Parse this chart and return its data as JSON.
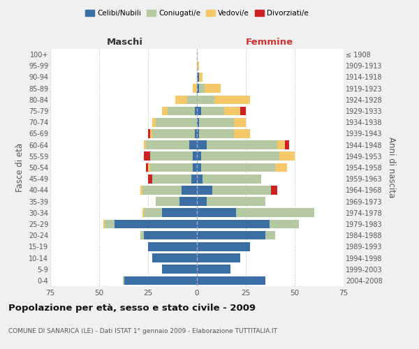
{
  "age_groups": [
    "0-4",
    "5-9",
    "10-14",
    "15-19",
    "20-24",
    "25-29",
    "30-34",
    "35-39",
    "40-44",
    "45-49",
    "50-54",
    "55-59",
    "60-64",
    "65-69",
    "70-74",
    "75-79",
    "80-84",
    "85-89",
    "90-94",
    "95-99",
    "100+"
  ],
  "birth_years": [
    "2004-2008",
    "1999-2003",
    "1994-1998",
    "1989-1993",
    "1984-1988",
    "1979-1983",
    "1974-1978",
    "1969-1973",
    "1964-1968",
    "1959-1963",
    "1954-1958",
    "1949-1953",
    "1944-1948",
    "1939-1943",
    "1934-1938",
    "1929-1933",
    "1924-1928",
    "1919-1923",
    "1914-1918",
    "1909-1913",
    "≤ 1908"
  ],
  "colors": {
    "celibi": "#3b6ea5",
    "coniugati": "#b5c9a0",
    "vedovi": "#f5c96a",
    "divorziati": "#cc2222"
  },
  "males": {
    "celibi": [
      37,
      18,
      23,
      25,
      27,
      42,
      18,
      9,
      8,
      3,
      2,
      2,
      4,
      1,
      0,
      1,
      0,
      0,
      0,
      0,
      0
    ],
    "coniugati": [
      1,
      0,
      0,
      0,
      2,
      5,
      9,
      12,
      20,
      20,
      22,
      22,
      22,
      22,
      21,
      14,
      5,
      0,
      0,
      0,
      0
    ],
    "vedovi": [
      0,
      0,
      0,
      0,
      0,
      1,
      1,
      0,
      1,
      0,
      1,
      0,
      1,
      1,
      2,
      3,
      6,
      2,
      0,
      0,
      0
    ],
    "divorziati": [
      0,
      0,
      0,
      0,
      0,
      0,
      0,
      0,
      0,
      2,
      1,
      3,
      0,
      1,
      0,
      0,
      0,
      0,
      0,
      0,
      0
    ]
  },
  "females": {
    "celibi": [
      35,
      17,
      22,
      27,
      35,
      37,
      20,
      5,
      8,
      3,
      2,
      2,
      5,
      1,
      1,
      2,
      0,
      1,
      1,
      0,
      0
    ],
    "coniugati": [
      0,
      0,
      0,
      0,
      5,
      15,
      40,
      30,
      30,
      30,
      38,
      40,
      36,
      18,
      18,
      12,
      9,
      3,
      0,
      0,
      0
    ],
    "vedovi": [
      0,
      0,
      0,
      0,
      0,
      0,
      0,
      0,
      0,
      0,
      6,
      8,
      4,
      8,
      6,
      8,
      18,
      8,
      2,
      1,
      0
    ],
    "divorziati": [
      0,
      0,
      0,
      0,
      0,
      0,
      0,
      0,
      3,
      0,
      0,
      0,
      2,
      0,
      0,
      3,
      0,
      0,
      0,
      0,
      0
    ]
  },
  "xlim": 75,
  "title": "Popolazione per età, sesso e stato civile - 2009",
  "subtitle": "COMUNE DI SANARICA (LE) - Dati ISTAT 1° gennaio 2009 - Elaborazione TUTTITALIA.IT",
  "xlabel_left": "Maschi",
  "xlabel_right": "Femmine",
  "ylabel_left": "Fasce di età",
  "ylabel_right": "Anni di nascita",
  "background_color": "#f0f0f0",
  "plot_bg": "#ffffff",
  "legend_labels": [
    "Celibi/Nubili",
    "Coniugati/e",
    "Vedovi/e",
    "Divorziati/e"
  ]
}
